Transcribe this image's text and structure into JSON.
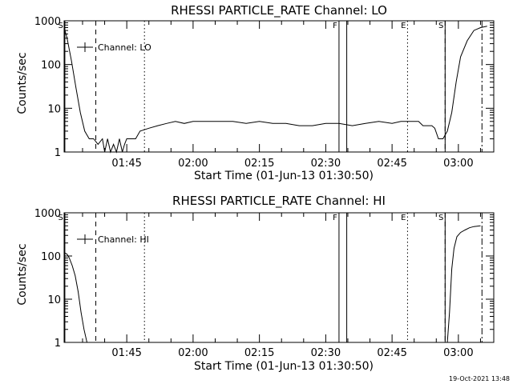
{
  "chart_data": [
    {
      "type": "line",
      "title": "RHESSI PARTICLE_RATE Channel: LO",
      "xlabel": "Start Time (01-Jun-13 01:30:50)",
      "ylabel": "Counts/sec",
      "yscale": "log",
      "xlim": [
        "01:30:50",
        "03:08:00"
      ],
      "ylim": [
        1,
        1000
      ],
      "x_ticks": [
        "01:45",
        "02:00",
        "02:15",
        "02:30",
        "02:45",
        "03:00"
      ],
      "y_ticks": [
        "1",
        "10",
        "100",
        "1000"
      ],
      "legend": "top-left",
      "series": [
        {
          "name": "Channel: LO",
          "x": [
            "01:30:50",
            "01:31:30",
            "01:32:30",
            "01:33:30",
            "01:34:30",
            "01:35:30",
            "01:36:30",
            "01:37:30",
            "01:38:30",
            "01:39:30",
            "01:40:00",
            "01:40:40",
            "01:41:20",
            "01:42:00",
            "01:42:40",
            "01:43:20",
            "01:44:00",
            "01:44:30",
            "01:45:00",
            "01:46:00",
            "01:47:00",
            "01:48:00",
            "01:50:00",
            "01:52:00",
            "01:54:00",
            "01:56:00",
            "01:58:00",
            "02:00:00",
            "02:03:00",
            "02:06:00",
            "02:09:00",
            "02:12:00",
            "02:15:00",
            "02:18:00",
            "02:21:00",
            "02:24:00",
            "02:27:00",
            "02:30:00",
            "02:33:00",
            "02:36:00",
            "02:39:00",
            "02:42:00",
            "02:45:00",
            "02:47:00",
            "02:49:00",
            "02:51:00",
            "02:52:00",
            "02:53:00",
            "02:54:00",
            "02:54:40",
            "02:55:30",
            "02:56:30",
            "02:57:30",
            "02:58:30",
            "02:59:30",
            "03:00:30",
            "03:02:00",
            "03:03:30",
            "03:05:00",
            "03:06:30"
          ],
          "y": [
            700,
            400,
            120,
            30,
            8,
            3,
            2,
            2,
            1.5,
            2,
            1,
            2,
            1,
            1.5,
            1,
            2,
            1,
            1.5,
            2,
            2,
            2,
            3,
            3.5,
            4,
            4.5,
            5,
            4.5,
            5,
            5,
            5,
            5,
            4.5,
            5,
            4.5,
            4.5,
            4,
            4,
            4.5,
            4.5,
            4,
            4.5,
            5,
            4.5,
            5,
            5,
            5,
            4,
            4,
            4,
            3.5,
            2,
            2,
            3,
            8,
            40,
            150,
            350,
            600,
            700,
            750
          ]
        }
      ],
      "markers": [
        {
          "label": "S",
          "time": "01:31:00",
          "style": "solid"
        },
        {
          "label": "F",
          "time": "02:33:00",
          "style": "solid"
        },
        {
          "label": "",
          "time": "02:34:45",
          "style": "solid"
        },
        {
          "label": "E",
          "time": "02:48:30",
          "style": "dotted"
        },
        {
          "label": "S",
          "time": "02:57:00",
          "style": "solid"
        },
        {
          "label": "",
          "time": "01:38:00",
          "style": "dashed"
        },
        {
          "label": "",
          "time": "01:49:00",
          "style": "dotted"
        },
        {
          "label": "",
          "time": "02:57:00",
          "style": "dashed"
        },
        {
          "label": "",
          "time": "03:05:20",
          "style": "dashdot"
        }
      ]
    },
    {
      "type": "line",
      "title": "RHESSI PARTICLE_RATE Channel: HI",
      "xlabel": "Start Time (01-Jun-13 01:30:50)",
      "ylabel": "Counts/sec",
      "yscale": "log",
      "xlim": [
        "01:30:50",
        "03:08:00"
      ],
      "ylim": [
        1,
        1000
      ],
      "x_ticks": [
        "01:45",
        "02:00",
        "02:15",
        "02:30",
        "02:45",
        "03:00"
      ],
      "y_ticks": [
        "1",
        "10",
        "100",
        "1000"
      ],
      "legend": "top-left",
      "series": [
        {
          "name": "Channel: HI",
          "x": [
            "01:30:50",
            "01:31:30",
            "01:32:00",
            "01:32:40",
            "01:33:20",
            "01:34:00",
            "01:34:40",
            "01:35:20",
            "01:36:00",
            "02:57:30",
            "02:58:00",
            "02:58:30",
            "02:59:00",
            "02:59:40",
            "03:00:30",
            "03:01:30",
            "03:02:30",
            "03:03:30",
            "03:05:00"
          ],
          "y": [
            120,
            110,
            90,
            60,
            35,
            15,
            5,
            2,
            1,
            1,
            5,
            50,
            150,
            280,
            350,
            400,
            450,
            480,
            500
          ],
          "gap_after_index": 8
        }
      ],
      "markers": [
        {
          "label": "S",
          "time": "01:31:00",
          "style": "solid"
        },
        {
          "label": "F",
          "time": "02:33:00",
          "style": "solid"
        },
        {
          "label": "",
          "time": "02:34:45",
          "style": "solid"
        },
        {
          "label": "E",
          "time": "02:48:30",
          "style": "dotted"
        },
        {
          "label": "S",
          "time": "02:57:00",
          "style": "solid"
        },
        {
          "label": "",
          "time": "01:38:00",
          "style": "dashed"
        },
        {
          "label": "",
          "time": "01:49:00",
          "style": "dotted"
        },
        {
          "label": "",
          "time": "02:57:00",
          "style": "dashed"
        },
        {
          "label": "",
          "time": "03:05:20",
          "style": "dashdot"
        }
      ]
    }
  ],
  "footer": {
    "timestamp": "19-Oct-2021 13:48"
  }
}
